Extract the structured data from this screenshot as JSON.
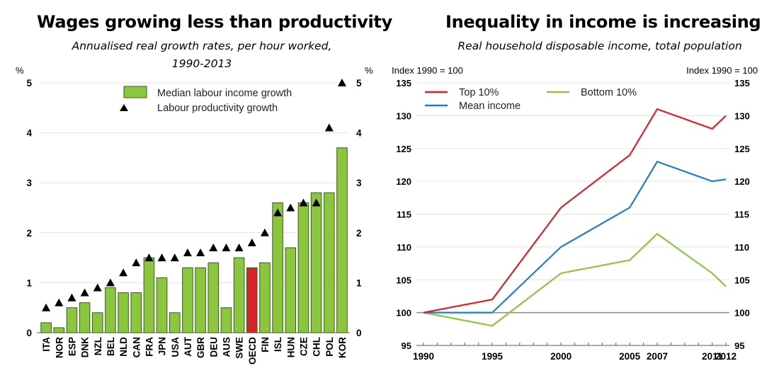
{
  "chart_data": [
    {
      "type": "bar",
      "title": "Wages growing less than productivity",
      "subtitle_line1": "Annualised real growth rates, per hour worked,",
      "subtitle_line2": "1990-2013",
      "ylabel_left": "%",
      "ylabel_right": "%",
      "ylim": [
        0,
        5
      ],
      "yticks": [
        "0",
        "1",
        "2",
        "3",
        "4",
        "5"
      ],
      "grid": true,
      "legend_position": "top-right",
      "categories": [
        "ITA",
        "NOR",
        "ESP",
        "DNK",
        "NZL",
        "BEL",
        "NLD",
        "CAN",
        "FRA",
        "JPN",
        "USA",
        "AUT",
        "GBR",
        "DEU",
        "AUS",
        "SWE",
        "OECD",
        "FIN",
        "ISL",
        "HUN",
        "CZE",
        "CHL",
        "POL",
        "KOR"
      ],
      "series": [
        {
          "name": "Median labour income growth",
          "kind": "bar",
          "color": "#8cc63f",
          "highlight_color": "#d7232a",
          "highlight_category": "OECD",
          "values": [
            0.2,
            0.1,
            0.5,
            0.6,
            0.4,
            0.9,
            0.8,
            0.8,
            1.5,
            1.1,
            0.4,
            1.3,
            1.3,
            1.4,
            0.5,
            1.5,
            1.3,
            1.4,
            2.6,
            1.7,
            2.6,
            2.8,
            2.8,
            3.7
          ]
        },
        {
          "name": "Labour productivity growth",
          "kind": "marker-triangle",
          "color": "#000000",
          "values": [
            0.5,
            0.6,
            0.7,
            0.8,
            0.9,
            1.0,
            1.2,
            1.4,
            1.5,
            1.5,
            1.5,
            1.6,
            1.6,
            1.7,
            1.7,
            1.7,
            1.8,
            2.0,
            2.4,
            2.5,
            2.6,
            2.6,
            4.1,
            5.0
          ]
        }
      ]
    },
    {
      "type": "line",
      "title": "Inequality in income is increasing",
      "subtitle": "Real household disposable income, total population",
      "ylabel_left": "Index 1990 = 100",
      "ylabel_right": "Index 1990 = 100",
      "ylim": [
        95,
        135
      ],
      "yticks": [
        "95",
        "100",
        "105",
        "110",
        "115",
        "120",
        "125",
        "130",
        "135"
      ],
      "xlim": [
        1990,
        2012
      ],
      "xticks": [
        "1990",
        "1995",
        "2000",
        "2005",
        "2007",
        "2011",
        "2012"
      ],
      "grid": true,
      "legend_position": "top-left",
      "baseline": 100,
      "x": [
        1990,
        1995,
        2000,
        2005,
        2007,
        2011,
        2012
      ],
      "series": [
        {
          "name": "Top 10%",
          "color": "#d7232a",
          "values": [
            100,
            102,
            116,
            124,
            131,
            128,
            130
          ]
        },
        {
          "name": "Mean income",
          "color": "#1f7fc1",
          "values": [
            100,
            100,
            110,
            116,
            123,
            120,
            120.3
          ]
        },
        {
          "name": "Bottom 10%",
          "color": "#8cc63f",
          "values": [
            100,
            98,
            106,
            108,
            112,
            106,
            104
          ]
        }
      ]
    }
  ]
}
